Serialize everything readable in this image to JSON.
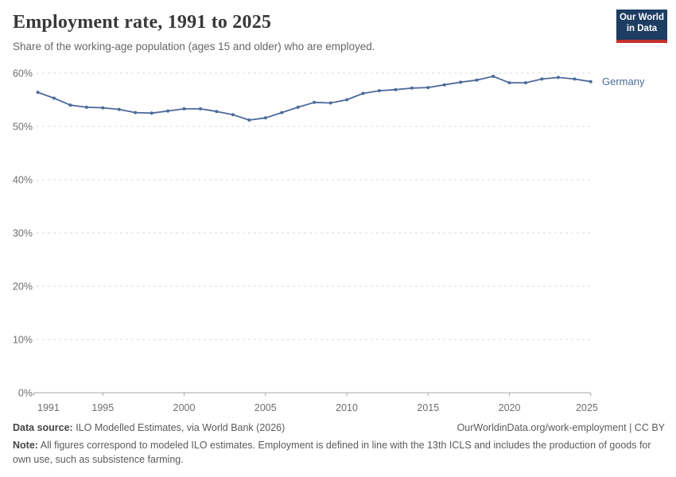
{
  "header": {
    "title": "Employment rate, 1991 to 2025",
    "subtitle": "Share of the working-age population (ages 15 and older) who are employed.",
    "logo": {
      "line1": "Our World",
      "line2": "in Data"
    }
  },
  "colors": {
    "series_blue": "#4c6a9c",
    "logo_background": "#1d3d63",
    "logo_stripe": "#c5312b",
    "gridline": "#d8d8d8",
    "axis": "#a7a7a7",
    "tick_label": "#6e6e6e"
  },
  "chart_data": {
    "type": "line",
    "title": "Employment rate, 1991 to 2025",
    "xlabel": "",
    "ylabel": "",
    "xlim": [
      1991,
      2025
    ],
    "ylim": [
      0,
      60
    ],
    "grid": "horizontal-dashed",
    "legend_position": "end-of-line-label",
    "x_ticks": [
      1991,
      1995,
      2000,
      2005,
      2010,
      2015,
      2020,
      2025
    ],
    "y_ticks": [
      {
        "value": 0,
        "label": "0%"
      },
      {
        "value": 10,
        "label": "10%"
      },
      {
        "value": 20,
        "label": "20%"
      },
      {
        "value": 30,
        "label": "30%"
      },
      {
        "value": 40,
        "label": "40%"
      },
      {
        "value": 50,
        "label": "50%"
      },
      {
        "value": 60,
        "label": "60%"
      }
    ],
    "series": [
      {
        "name": "Germany",
        "color": "#4c6a9c",
        "x": [
          1991,
          1992,
          1993,
          1994,
          1995,
          1996,
          1997,
          1998,
          1999,
          2000,
          2001,
          2002,
          2003,
          2004,
          2005,
          2006,
          2007,
          2008,
          2009,
          2010,
          2011,
          2012,
          2013,
          2014,
          2015,
          2016,
          2017,
          2018,
          2019,
          2020,
          2021,
          2022,
          2023,
          2024,
          2025
        ],
        "values": [
          56.4,
          55.3,
          54.0,
          53.6,
          53.5,
          53.2,
          52.6,
          52.5,
          52.9,
          53.3,
          53.3,
          52.8,
          52.2,
          51.2,
          51.6,
          52.6,
          53.6,
          54.5,
          54.4,
          55.0,
          56.2,
          56.7,
          56.9,
          57.2,
          57.3,
          57.8,
          58.3,
          58.7,
          59.4,
          58.2,
          58.2,
          58.9,
          59.2,
          58.9,
          58.4
        ]
      }
    ]
  },
  "footer": {
    "source_prefix": "Data source:",
    "source_text": " ILO Modelled Estimates, via World Bank (2026)",
    "rights": "OurWorldinData.org/work-employment | CC BY",
    "note_prefix": "Note:",
    "note_text": " All figures correspond to modeled ILO estimates. Employment is defined in line with the 13th ICLS and includes the production of goods for own use, such as subsistence farming."
  }
}
